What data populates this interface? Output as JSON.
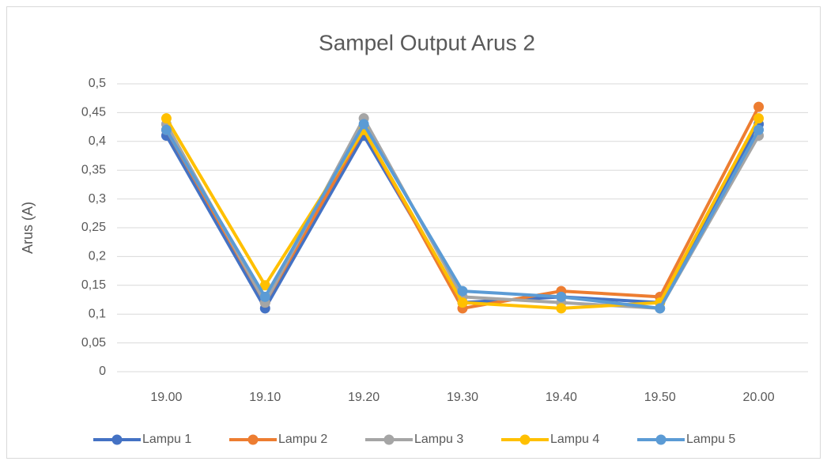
{
  "chart_data": {
    "type": "line",
    "title": "Sampel Output Arus 2",
    "y_label": "Arus (A)",
    "categories": [
      "19.00",
      "19.10",
      "19.20",
      "19.30",
      "19.40",
      "19.50",
      "20.00"
    ],
    "series": [
      {
        "name": "Lampu 1",
        "color": "#4472c4",
        "values": [
          0.41,
          0.11,
          0.41,
          0.12,
          0.13,
          0.12,
          0.43
        ]
      },
      {
        "name": "Lampu 2",
        "color": "#ed7d31",
        "values": [
          0.42,
          0.12,
          0.42,
          0.11,
          0.14,
          0.13,
          0.46
        ]
      },
      {
        "name": "Lampu 3",
        "color": "#a5a5a5",
        "values": [
          0.43,
          0.12,
          0.44,
          0.13,
          0.12,
          0.11,
          0.41
        ]
      },
      {
        "name": "Lampu 4",
        "color": "#ffc000",
        "values": [
          0.44,
          0.15,
          0.42,
          0.12,
          0.11,
          0.12,
          0.44
        ]
      },
      {
        "name": "Lampu 5",
        "color": "#5b9bd5",
        "values": [
          0.42,
          0.13,
          0.43,
          0.14,
          0.13,
          0.11,
          0.42
        ]
      }
    ],
    "ylim": [
      0,
      0.5
    ],
    "yticks": [
      0,
      {
        "value": 0.05,
        "label": "0,05"
      },
      {
        "value": 0.1,
        "label": "0,1"
      },
      {
        "value": 0.15,
        "label": "0,15"
      },
      {
        "value": 0.2,
        "label": "0,2"
      },
      {
        "value": 0.25,
        "label": "0,25"
      },
      {
        "value": 0.3,
        "label": "0,3"
      },
      {
        "value": 0.35,
        "label": "0,35"
      },
      {
        "value": 0.4,
        "label": "0,4"
      },
      {
        "value": 0.45,
        "label": "0,45"
      },
      {
        "value": 0.5,
        "label": "0,5"
      }
    ],
    "grid": true,
    "legend": "bottom"
  }
}
